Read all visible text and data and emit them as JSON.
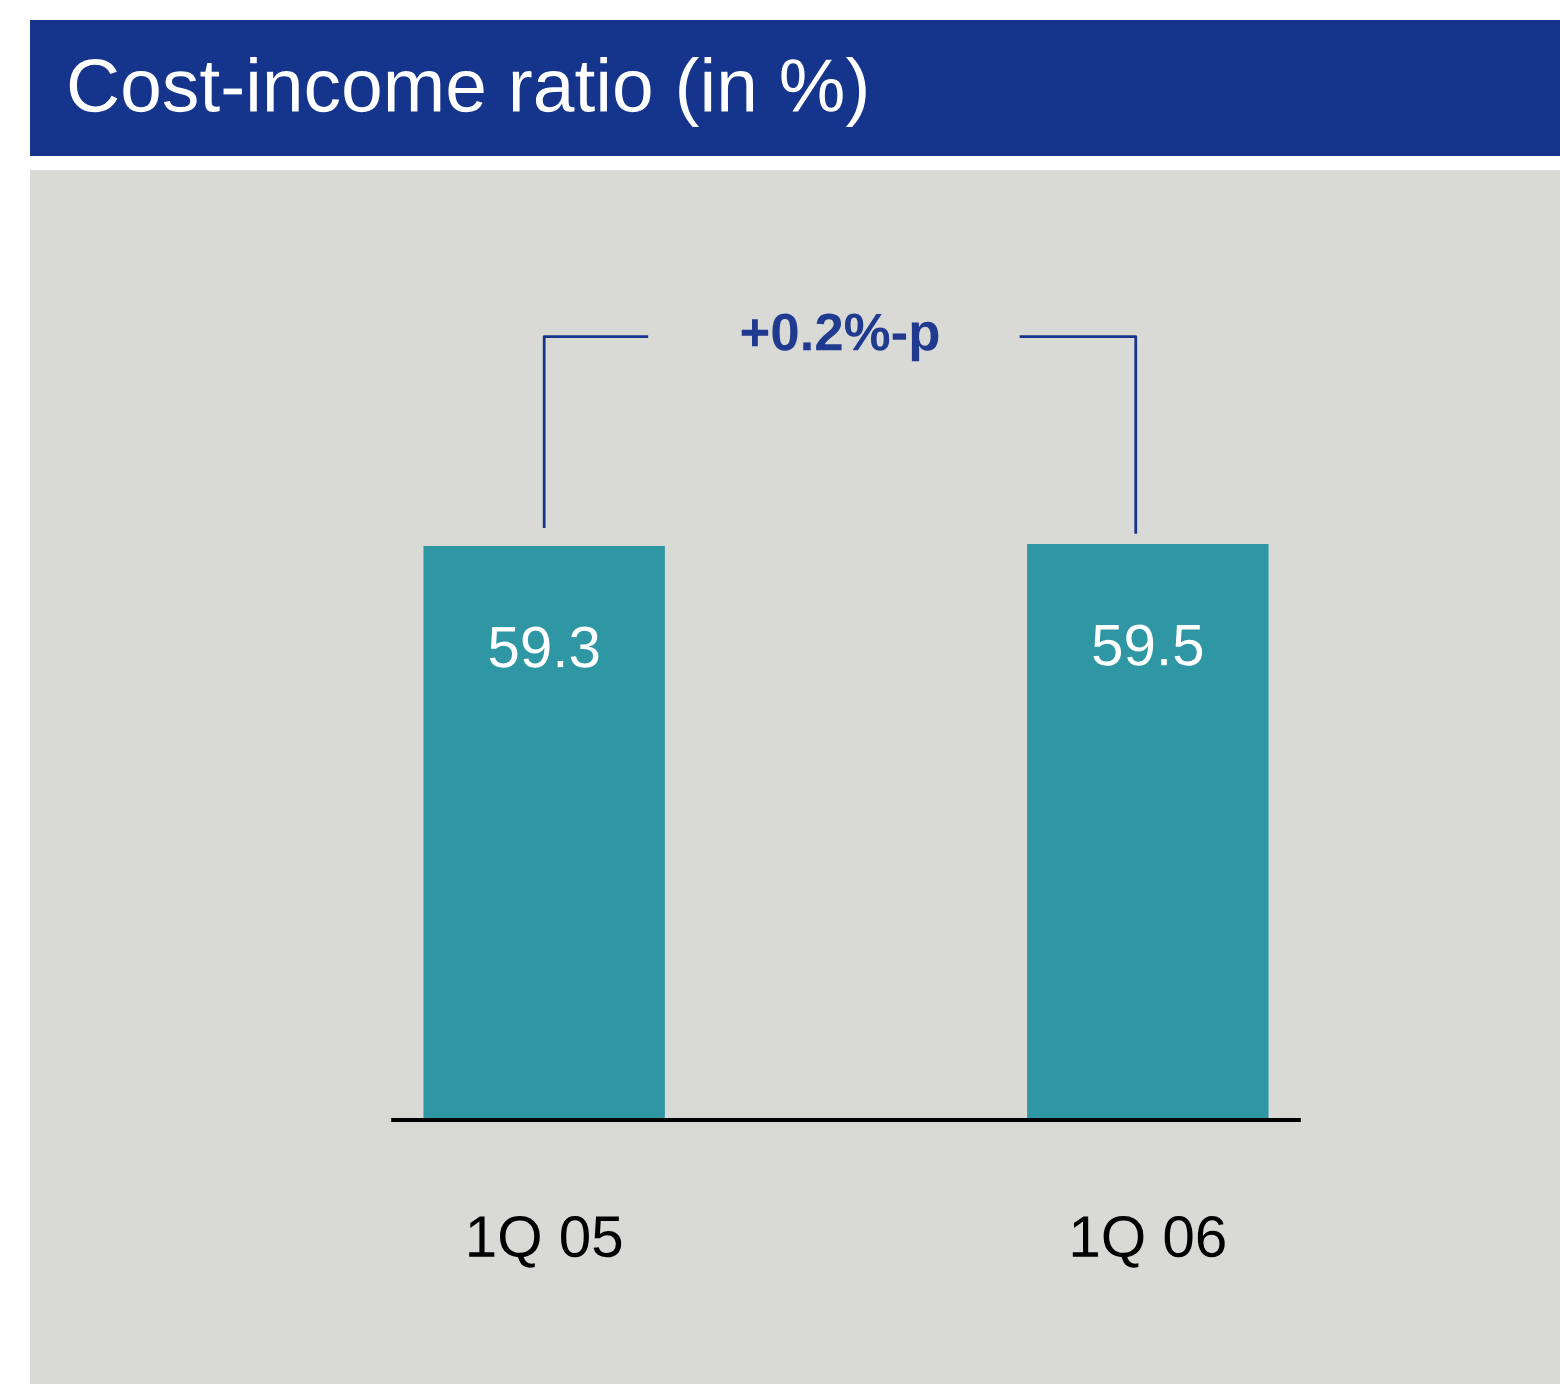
{
  "chart_data": {
    "type": "bar",
    "title": "Cost-income ratio (in %)",
    "categories": [
      "1Q 05",
      "1Q 06"
    ],
    "values": [
      59.3,
      59.5
    ],
    "color": "#2e97a3",
    "data_labels": true,
    "annotations": [
      "+0.2%-p"
    ]
  }
}
